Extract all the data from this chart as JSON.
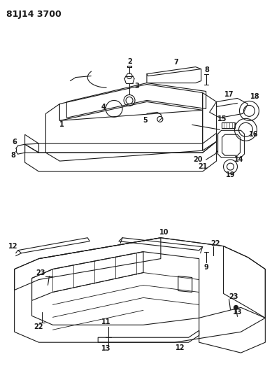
{
  "title": "81J14 3700",
  "bg_color": "#ffffff",
  "line_color": "#1a1a1a",
  "title_fontsize": 9,
  "label_fontsize": 7,
  "fig_width": 3.89,
  "fig_height": 5.33,
  "dpi": 100
}
